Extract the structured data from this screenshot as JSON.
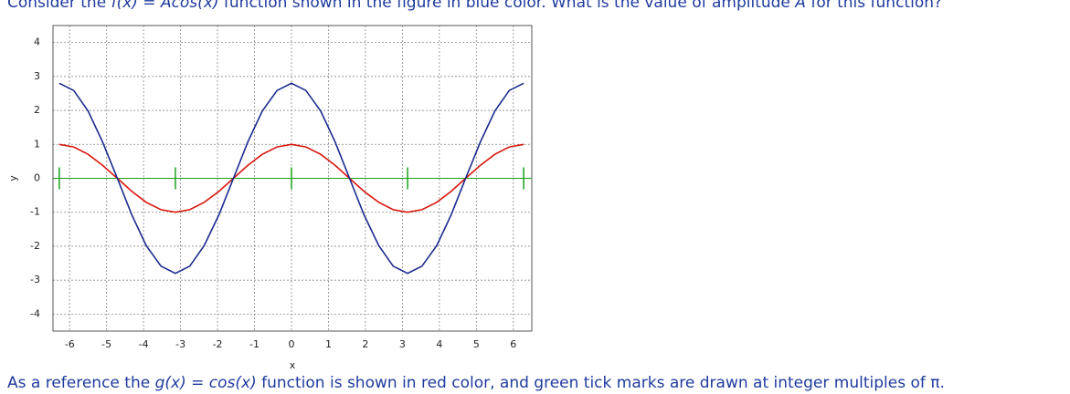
{
  "question": [
    "Consider the ",
    "f(x)",
    " = ",
    "Acos(x)",
    " function shown in the figure in blue color. What is the value of amplitude ",
    "A",
    " for this function?"
  ],
  "note": [
    "As a reference the ",
    "g(x)",
    " = ",
    "cos(x)",
    " function is shown in red color, and green tick marks are drawn at integer multiples of π."
  ],
  "chart_data": {
    "type": "line",
    "xlabel": "x",
    "ylabel": "y",
    "x": [
      -6.28,
      -5.89,
      -5.5,
      -5.11,
      -4.71,
      -4.32,
      -3.93,
      -3.53,
      -3.14,
      -2.75,
      -2.36,
      -1.96,
      -1.57,
      -1.18,
      -0.79,
      -0.39,
      0,
      0.39,
      0.79,
      1.18,
      1.57,
      1.96,
      2.36,
      2.75,
      3.14,
      3.53,
      3.93,
      4.32,
      4.71,
      5.11,
      5.5,
      5.89,
      6.28
    ],
    "series": [
      {
        "name": "f(x)",
        "color": "#1a2a8c",
        "values": [
          2.8,
          2.587,
          1.98,
          1.072,
          0,
          -1.072,
          -1.98,
          -2.587,
          -2.8,
          -2.587,
          -1.98,
          -1.072,
          0,
          1.072,
          1.98,
          2.587,
          2.8,
          2.587,
          1.98,
          1.072,
          0,
          -1.072,
          -1.98,
          -2.587,
          -2.8,
          -2.587,
          -1.98,
          -1.072,
          0,
          1.072,
          1.98,
          2.587,
          2.8
        ]
      },
      {
        "name": "g(x)",
        "color": "#d8180f",
        "values": [
          1,
          0.924,
          0.707,
          0.383,
          0,
          -0.383,
          -0.707,
          -0.924,
          -1,
          -0.924,
          -0.707,
          -0.383,
          0,
          0.383,
          0.707,
          0.924,
          1,
          0.924,
          0.707,
          0.383,
          0,
          -0.383,
          -0.707,
          -0.924,
          -1,
          -0.924,
          -0.707,
          -0.383,
          0,
          0.383,
          0.707,
          0.924,
          1
        ]
      }
    ],
    "green_ticks": [
      -6.28,
      -3.14,
      0,
      3.14,
      6.28
    ],
    "green_color": "#1aa01a",
    "xlim": [
      -6.45,
      6.5
    ],
    "ylim": [
      -4.5,
      4.5
    ],
    "xticks": [
      -6,
      -5,
      -4,
      -3,
      -2,
      -1,
      0,
      1,
      2,
      3,
      4,
      5,
      6
    ],
    "yticks": [
      -4,
      -3,
      -2,
      -1,
      0,
      1,
      2,
      3,
      4
    ],
    "grid": true
  }
}
